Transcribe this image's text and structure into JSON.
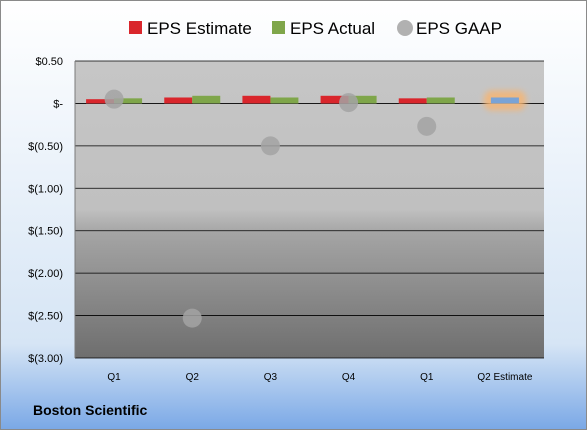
{
  "chart_data": {
    "type": "bar",
    "title": "",
    "categories": [
      "Q1",
      "Q2",
      "Q3",
      "Q4",
      "Q1",
      "Q2 Estimate"
    ],
    "series": [
      {
        "name": "EPS Estimate",
        "type": "bar",
        "color": "#d9262c",
        "values": [
          0.05,
          0.07,
          0.09,
          0.09,
          0.06,
          null
        ]
      },
      {
        "name": "EPS Actual",
        "type": "bar",
        "color": "#7fa64a",
        "values": [
          0.06,
          0.09,
          0.07,
          0.09,
          0.07,
          0.07
        ]
      },
      {
        "name": "EPS GAAP",
        "type": "scatter",
        "color": "#a3a3a3",
        "values": [
          0.05,
          -2.53,
          -0.5,
          0.01,
          -0.27,
          null
        ]
      }
    ],
    "highlight": {
      "category_index": 5,
      "color": "#7aa3d6",
      "glow": "#f5b574"
    },
    "ylim": [
      -3.0,
      0.5
    ],
    "yticks": [
      0.5,
      0,
      -0.5,
      -1.0,
      -1.5,
      -2.0,
      -2.5,
      -3.0
    ],
    "ytick_labels": [
      "$0.50",
      "$-",
      "$(0.50)",
      "$(1.00)",
      "$(1.50)",
      "$(2.00)",
      "$(2.50)",
      "$(3.00)"
    ],
    "grid": true,
    "legend_position": "top",
    "footer_label": "Boston Scientific"
  }
}
